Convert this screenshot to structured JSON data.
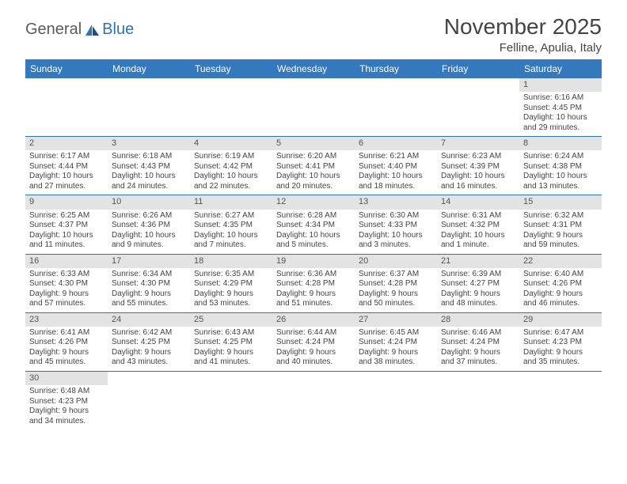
{
  "logo": {
    "general": "General",
    "blue": "Blue"
  },
  "title": "November 2025",
  "location": "Felline, Apulia, Italy",
  "colors": {
    "header_bg": "#3478bd",
    "header_text": "#ffffff",
    "daynum_bg": "#e3e3e3",
    "border": "#2d72b5",
    "text": "#444444"
  },
  "weekdays": [
    "Sunday",
    "Monday",
    "Tuesday",
    "Wednesday",
    "Thursday",
    "Friday",
    "Saturday"
  ],
  "weeks": [
    [
      {
        "empty": true
      },
      {
        "empty": true
      },
      {
        "empty": true
      },
      {
        "empty": true
      },
      {
        "empty": true
      },
      {
        "empty": true
      },
      {
        "n": "1",
        "sunrise": "Sunrise: 6:16 AM",
        "sunset": "Sunset: 4:45 PM",
        "day1": "Daylight: 10 hours",
        "day2": "and 29 minutes."
      }
    ],
    [
      {
        "n": "2",
        "sunrise": "Sunrise: 6:17 AM",
        "sunset": "Sunset: 4:44 PM",
        "day1": "Daylight: 10 hours",
        "day2": "and 27 minutes."
      },
      {
        "n": "3",
        "sunrise": "Sunrise: 6:18 AM",
        "sunset": "Sunset: 4:43 PM",
        "day1": "Daylight: 10 hours",
        "day2": "and 24 minutes."
      },
      {
        "n": "4",
        "sunrise": "Sunrise: 6:19 AM",
        "sunset": "Sunset: 4:42 PM",
        "day1": "Daylight: 10 hours",
        "day2": "and 22 minutes."
      },
      {
        "n": "5",
        "sunrise": "Sunrise: 6:20 AM",
        "sunset": "Sunset: 4:41 PM",
        "day1": "Daylight: 10 hours",
        "day2": "and 20 minutes."
      },
      {
        "n": "6",
        "sunrise": "Sunrise: 6:21 AM",
        "sunset": "Sunset: 4:40 PM",
        "day1": "Daylight: 10 hours",
        "day2": "and 18 minutes."
      },
      {
        "n": "7",
        "sunrise": "Sunrise: 6:23 AM",
        "sunset": "Sunset: 4:39 PM",
        "day1": "Daylight: 10 hours",
        "day2": "and 16 minutes."
      },
      {
        "n": "8",
        "sunrise": "Sunrise: 6:24 AM",
        "sunset": "Sunset: 4:38 PM",
        "day1": "Daylight: 10 hours",
        "day2": "and 13 minutes."
      }
    ],
    [
      {
        "n": "9",
        "sunrise": "Sunrise: 6:25 AM",
        "sunset": "Sunset: 4:37 PM",
        "day1": "Daylight: 10 hours",
        "day2": "and 11 minutes."
      },
      {
        "n": "10",
        "sunrise": "Sunrise: 6:26 AM",
        "sunset": "Sunset: 4:36 PM",
        "day1": "Daylight: 10 hours",
        "day2": "and 9 minutes."
      },
      {
        "n": "11",
        "sunrise": "Sunrise: 6:27 AM",
        "sunset": "Sunset: 4:35 PM",
        "day1": "Daylight: 10 hours",
        "day2": "and 7 minutes."
      },
      {
        "n": "12",
        "sunrise": "Sunrise: 6:28 AM",
        "sunset": "Sunset: 4:34 PM",
        "day1": "Daylight: 10 hours",
        "day2": "and 5 minutes."
      },
      {
        "n": "13",
        "sunrise": "Sunrise: 6:30 AM",
        "sunset": "Sunset: 4:33 PM",
        "day1": "Daylight: 10 hours",
        "day2": "and 3 minutes."
      },
      {
        "n": "14",
        "sunrise": "Sunrise: 6:31 AM",
        "sunset": "Sunset: 4:32 PM",
        "day1": "Daylight: 10 hours",
        "day2": "and 1 minute."
      },
      {
        "n": "15",
        "sunrise": "Sunrise: 6:32 AM",
        "sunset": "Sunset: 4:31 PM",
        "day1": "Daylight: 9 hours",
        "day2": "and 59 minutes."
      }
    ],
    [
      {
        "n": "16",
        "sunrise": "Sunrise: 6:33 AM",
        "sunset": "Sunset: 4:30 PM",
        "day1": "Daylight: 9 hours",
        "day2": "and 57 minutes."
      },
      {
        "n": "17",
        "sunrise": "Sunrise: 6:34 AM",
        "sunset": "Sunset: 4:30 PM",
        "day1": "Daylight: 9 hours",
        "day2": "and 55 minutes."
      },
      {
        "n": "18",
        "sunrise": "Sunrise: 6:35 AM",
        "sunset": "Sunset: 4:29 PM",
        "day1": "Daylight: 9 hours",
        "day2": "and 53 minutes."
      },
      {
        "n": "19",
        "sunrise": "Sunrise: 6:36 AM",
        "sunset": "Sunset: 4:28 PM",
        "day1": "Daylight: 9 hours",
        "day2": "and 51 minutes."
      },
      {
        "n": "20",
        "sunrise": "Sunrise: 6:37 AM",
        "sunset": "Sunset: 4:28 PM",
        "day1": "Daylight: 9 hours",
        "day2": "and 50 minutes."
      },
      {
        "n": "21",
        "sunrise": "Sunrise: 6:39 AM",
        "sunset": "Sunset: 4:27 PM",
        "day1": "Daylight: 9 hours",
        "day2": "and 48 minutes."
      },
      {
        "n": "22",
        "sunrise": "Sunrise: 6:40 AM",
        "sunset": "Sunset: 4:26 PM",
        "day1": "Daylight: 9 hours",
        "day2": "and 46 minutes."
      }
    ],
    [
      {
        "n": "23",
        "sunrise": "Sunrise: 6:41 AM",
        "sunset": "Sunset: 4:26 PM",
        "day1": "Daylight: 9 hours",
        "day2": "and 45 minutes."
      },
      {
        "n": "24",
        "sunrise": "Sunrise: 6:42 AM",
        "sunset": "Sunset: 4:25 PM",
        "day1": "Daylight: 9 hours",
        "day2": "and 43 minutes."
      },
      {
        "n": "25",
        "sunrise": "Sunrise: 6:43 AM",
        "sunset": "Sunset: 4:25 PM",
        "day1": "Daylight: 9 hours",
        "day2": "and 41 minutes."
      },
      {
        "n": "26",
        "sunrise": "Sunrise: 6:44 AM",
        "sunset": "Sunset: 4:24 PM",
        "day1": "Daylight: 9 hours",
        "day2": "and 40 minutes."
      },
      {
        "n": "27",
        "sunrise": "Sunrise: 6:45 AM",
        "sunset": "Sunset: 4:24 PM",
        "day1": "Daylight: 9 hours",
        "day2": "and 38 minutes."
      },
      {
        "n": "28",
        "sunrise": "Sunrise: 6:46 AM",
        "sunset": "Sunset: 4:24 PM",
        "day1": "Daylight: 9 hours",
        "day2": "and 37 minutes."
      },
      {
        "n": "29",
        "sunrise": "Sunrise: 6:47 AM",
        "sunset": "Sunset: 4:23 PM",
        "day1": "Daylight: 9 hours",
        "day2": "and 35 minutes."
      }
    ],
    [
      {
        "n": "30",
        "sunrise": "Sunrise: 6:48 AM",
        "sunset": "Sunset: 4:23 PM",
        "day1": "Daylight: 9 hours",
        "day2": "and 34 minutes."
      },
      {
        "blank": true
      },
      {
        "blank": true
      },
      {
        "blank": true
      },
      {
        "blank": true
      },
      {
        "blank": true
      },
      {
        "blank": true
      }
    ]
  ]
}
